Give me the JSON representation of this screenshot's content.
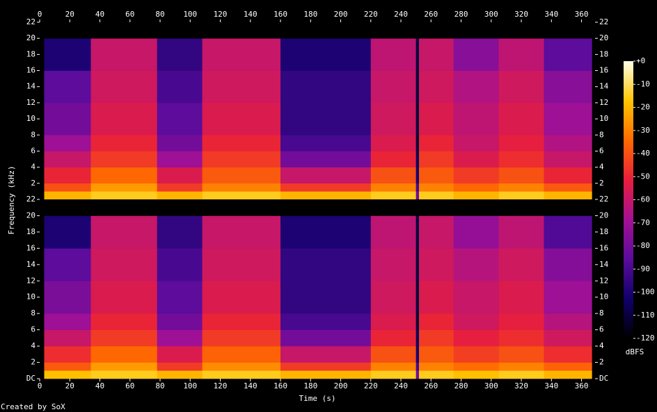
{
  "chart_data": {
    "type": "spectrogram",
    "x_label": "Time (s)",
    "y_label": "Frequency (kHz)",
    "colorbar_label": "dBFS",
    "footer": "Created by SoX",
    "xlim": [
      0,
      369
    ],
    "xticks": [
      0,
      20,
      40,
      60,
      80,
      100,
      120,
      140,
      160,
      180,
      200,
      220,
      240,
      260,
      280,
      300,
      320,
      340,
      360
    ],
    "ylim": [
      0,
      22
    ],
    "colorbar_lim": [
      -120,
      0
    ],
    "colorbar_ticks": [
      {
        "value": 0,
        "label": "+0"
      },
      -10,
      -20,
      -30,
      -40,
      -50,
      -60,
      -70,
      -80,
      -90,
      -100,
      -110,
      -120
    ],
    "colormap": [
      "#000000",
      "#10006a",
      "#5a0c9c",
      "#a41094",
      "#e81e3c",
      "#ff6a00",
      "#ffc400",
      "#ffffe8"
    ],
    "x_edges": [
      0,
      3,
      34,
      78,
      108,
      160,
      220,
      250,
      252,
      275,
      305,
      335,
      367,
      369
    ],
    "freq_edges": [
      0,
      1,
      2,
      4,
      6,
      8,
      12,
      16,
      20,
      22
    ],
    "channels": [
      {
        "yticks": [
          2,
          4,
          6,
          8,
          10,
          12,
          14,
          16,
          18,
          20,
          22
        ],
        "values": [
          [
            -120,
            -120,
            -120,
            -120,
            -120,
            -120,
            -120,
            -120,
            -120
          ],
          [
            -20,
            -40,
            -50,
            -60,
            -70,
            -80,
            -85,
            -100,
            -120
          ],
          [
            -15,
            -25,
            -35,
            -45,
            -50,
            -55,
            -58,
            -60,
            -120
          ],
          [
            -20,
            -45,
            -55,
            -70,
            -80,
            -85,
            -90,
            -95,
            -120
          ],
          [
            -15,
            -30,
            -38,
            -45,
            -50,
            -55,
            -58,
            -60,
            -120
          ],
          [
            -20,
            -45,
            -60,
            -80,
            -90,
            -95,
            -95,
            -100,
            -120
          ],
          [
            -15,
            -30,
            -40,
            -50,
            -55,
            -58,
            -60,
            -62,
            -120
          ],
          [
            -80,
            -90,
            -100,
            -105,
            -110,
            -110,
            -110,
            -110,
            -120
          ],
          [
            -15,
            -30,
            -38,
            -45,
            -50,
            -55,
            -58,
            -60,
            -120
          ],
          [
            -20,
            -35,
            -45,
            -55,
            -60,
            -62,
            -65,
            -75,
            -120
          ],
          [
            -15,
            -30,
            -40,
            -48,
            -52,
            -55,
            -58,
            -62,
            -120
          ],
          [
            -20,
            -38,
            -50,
            -60,
            -65,
            -70,
            -75,
            -85,
            -120
          ],
          [
            -120,
            -120,
            -120,
            -120,
            -120,
            -120,
            -120,
            -120,
            -120
          ]
        ]
      },
      {
        "yticks": [
          {
            "value": 0,
            "label": "DC"
          },
          2,
          4,
          6,
          8,
          10,
          12,
          14,
          16,
          18,
          20,
          22
        ],
        "values": [
          [
            -120,
            -120,
            -120,
            -120,
            -120,
            -120,
            -120,
            -120,
            -120
          ],
          [
            -18,
            -38,
            -48,
            -60,
            -70,
            -78,
            -85,
            -100,
            -120
          ],
          [
            -15,
            -25,
            -35,
            -45,
            -50,
            -55,
            -58,
            -60,
            -120
          ],
          [
            -20,
            -45,
            -55,
            -70,
            -80,
            -85,
            -90,
            -95,
            -120
          ],
          [
            -15,
            -28,
            -36,
            -45,
            -50,
            -55,
            -58,
            -60,
            -120
          ],
          [
            -20,
            -45,
            -60,
            -80,
            -90,
            -95,
            -95,
            -100,
            -120
          ],
          [
            -15,
            -30,
            -40,
            -50,
            -55,
            -58,
            -60,
            -62,
            -120
          ],
          [
            -80,
            -90,
            -100,
            -105,
            -110,
            -110,
            -110,
            -110,
            -120
          ],
          [
            -15,
            -30,
            -38,
            -45,
            -50,
            -55,
            -58,
            -60,
            -120
          ],
          [
            -18,
            -34,
            -44,
            -52,
            -58,
            -60,
            -64,
            -72,
            -120
          ],
          [
            -15,
            -30,
            -40,
            -48,
            -52,
            -55,
            -58,
            -62,
            -120
          ],
          [
            -20,
            -36,
            -48,
            -58,
            -64,
            -70,
            -76,
            -88,
            -120
          ],
          [
            -120,
            -120,
            -120,
            -120,
            -120,
            -120,
            -120,
            -120,
            -120
          ]
        ]
      }
    ]
  }
}
